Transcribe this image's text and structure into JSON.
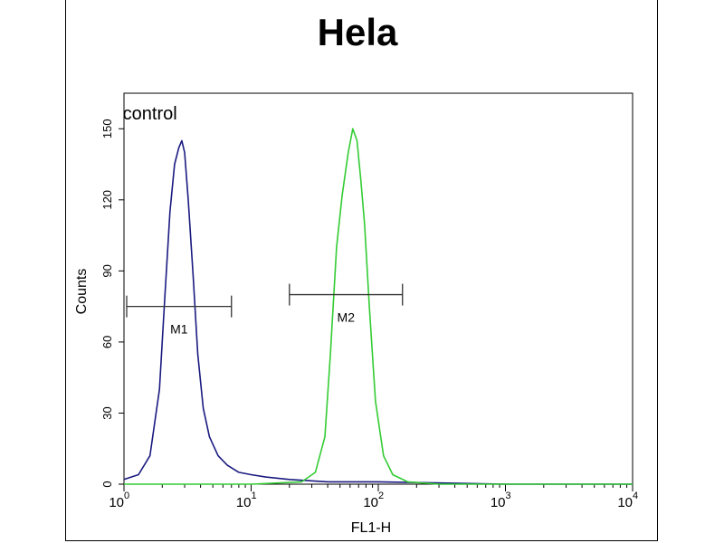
{
  "chart_data": {
    "type": "line",
    "title": "Hela",
    "xlabel": "FL1-H",
    "ylabel": "Counts",
    "x_scale": "log",
    "xlim": [
      1,
      10000
    ],
    "ylim": [
      0,
      165
    ],
    "x_ticks": [
      {
        "value": 1,
        "base": "10",
        "exp": "0"
      },
      {
        "value": 10,
        "base": "10",
        "exp": "1"
      },
      {
        "value": 100,
        "base": "10",
        "exp": "2"
      },
      {
        "value": 1000,
        "base": "10",
        "exp": "3"
      },
      {
        "value": 10000,
        "base": "10",
        "exp": "4"
      }
    ],
    "y_ticks": [
      "0",
      "30",
      "60",
      "90",
      "120",
      "150"
    ],
    "series": [
      {
        "name": "control",
        "color": "#1a1a80",
        "x": [
          1.0,
          1.3,
          1.6,
          1.9,
          2.1,
          2.3,
          2.5,
          2.7,
          2.85,
          3.0,
          3.2,
          3.5,
          3.8,
          4.2,
          4.7,
          5.5,
          6.5,
          8.0,
          10.0,
          13.0,
          20.0,
          40.0,
          100.0,
          1000.0,
          10000.0
        ],
        "y": [
          2,
          4,
          12,
          40,
          80,
          115,
          135,
          142,
          145,
          140,
          120,
          88,
          55,
          32,
          20,
          12,
          8,
          5,
          4,
          3,
          2,
          1,
          1,
          0,
          0
        ]
      },
      {
        "name": "",
        "color": "#33cc33",
        "x": [
          1.0,
          10.0,
          25.0,
          32.0,
          38.0,
          42.0,
          47.0,
          52.0,
          58.0,
          63.0,
          68.0,
          73.0,
          78.0,
          85.0,
          95.0,
          110.0,
          130.0,
          170.0,
          300.0,
          1000.0,
          10000.0
        ],
        "y": [
          0,
          0,
          1,
          5,
          20,
          55,
          100,
          122,
          140,
          150,
          145,
          128,
          110,
          75,
          35,
          12,
          4,
          1,
          0,
          0,
          0
        ]
      }
    ],
    "markers": [
      {
        "label": "M1",
        "x_start": 1.05,
        "x_end": 7.0,
        "y": 75
      },
      {
        "label": "M2",
        "x_start": 20.0,
        "x_end": 155.0,
        "y": 80
      }
    ],
    "annotations": [
      {
        "text": "control",
        "x": 1.6,
        "y": 154
      }
    ],
    "grid": false
  }
}
